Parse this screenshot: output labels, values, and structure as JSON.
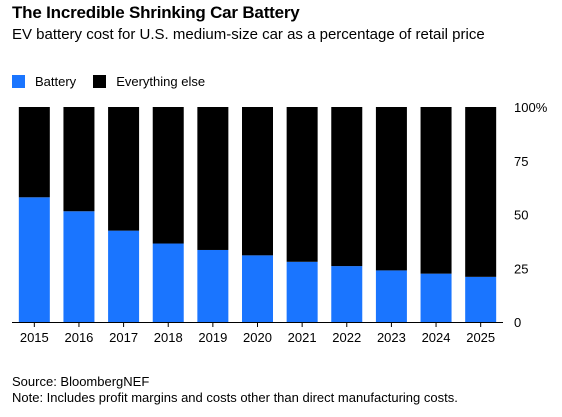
{
  "chart_data": {
    "type": "bar",
    "stacked": true,
    "title": "The Incredible Shrinking Car Battery",
    "subtitle": "EV battery cost for U.S. medium-size car as a percentage of retail price",
    "categories": [
      "2015",
      "2016",
      "2017",
      "2018",
      "2019",
      "2020",
      "2021",
      "2022",
      "2023",
      "2024",
      "2025"
    ],
    "series": [
      {
        "name": "Battery",
        "color": "#1a75ff",
        "values": [
          58,
          51.5,
          42.5,
          36.5,
          33.5,
          31,
          28,
          26,
          24,
          22.5,
          21
        ]
      },
      {
        "name": "Everything else",
        "color": "#000000",
        "values": [
          42,
          48.5,
          57.5,
          63.5,
          66.5,
          69,
          72,
          74,
          76,
          77.5,
          79
        ]
      }
    ],
    "ylim": [
      0,
      100
    ],
    "yticks": [
      "0",
      "25",
      "50",
      "75",
      "100%"
    ],
    "ytick_values": [
      0,
      25,
      50,
      75,
      100
    ],
    "y_axis_side": "right",
    "legend_position": "top-left",
    "grid": false
  },
  "source": "Source: BloombergNEF",
  "note": "Note: Includes profit margins and costs other than direct manufacturing costs."
}
